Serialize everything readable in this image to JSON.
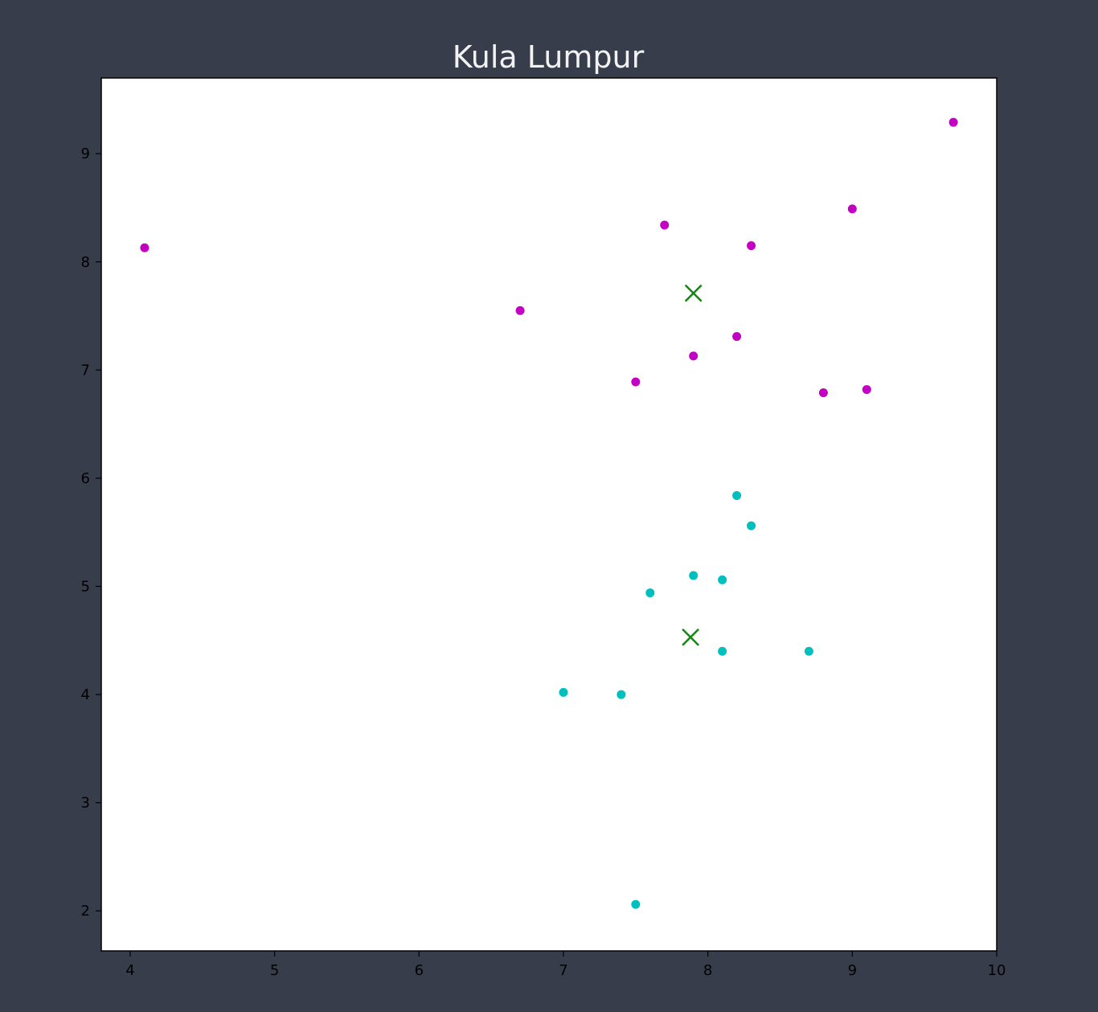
{
  "colors": {
    "background": "#373d4a",
    "plot_background": "#ffffff",
    "cluster_a": "#c300c3",
    "cluster_b": "#00bfbf",
    "centroid": "#128712",
    "axis": "#000000",
    "title": "#f2f2f2"
  },
  "chart_data": {
    "type": "scatter",
    "title": "Kula Lumpur",
    "xlabel": "",
    "ylabel": "",
    "xlim": [
      3.8,
      10.0
    ],
    "ylim": [
      1.63,
      9.7
    ],
    "xticks": [
      4,
      5,
      6,
      7,
      8,
      9,
      10
    ],
    "yticks": [
      2,
      3,
      4,
      5,
      6,
      7,
      8,
      9
    ],
    "grid": false,
    "legend": "none",
    "series": [
      {
        "marker": "circle",
        "color_key": "cluster_a",
        "points": [
          [
            4.1,
            8.13
          ],
          [
            6.7,
            7.55
          ],
          [
            7.7,
            8.34
          ],
          [
            8.3,
            8.15
          ],
          [
            9.0,
            8.49
          ],
          [
            9.7,
            9.29
          ],
          [
            8.2,
            7.31
          ],
          [
            7.9,
            7.13
          ],
          [
            7.5,
            6.89
          ],
          [
            8.8,
            6.79
          ],
          [
            9.1,
            6.82
          ]
        ]
      },
      {
        "marker": "circle",
        "color_key": "cluster_b",
        "points": [
          [
            8.2,
            5.84
          ],
          [
            8.3,
            5.56
          ],
          [
            7.9,
            5.1
          ],
          [
            8.1,
            5.06
          ],
          [
            7.6,
            4.94
          ],
          [
            8.1,
            4.4
          ],
          [
            8.7,
            4.4
          ],
          [
            7.0,
            4.02
          ],
          [
            7.4,
            4.0
          ],
          [
            7.5,
            2.06
          ]
        ]
      },
      {
        "marker": "x",
        "color_key": "centroid",
        "points": [
          [
            7.9,
            7.71
          ],
          [
            7.88,
            4.53
          ]
        ]
      }
    ]
  }
}
